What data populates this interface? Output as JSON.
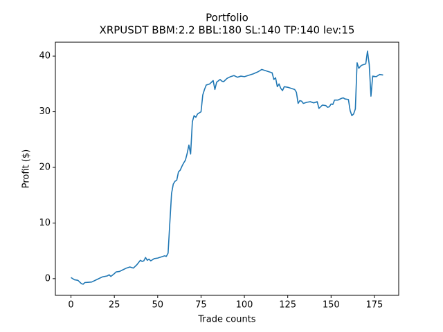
{
  "chart_data": {
    "type": "line",
    "title": "Portfolio",
    "subtitle": "XRPUSDT BBM:2.2 BBL:180 SL:140 TP:140 lev:15",
    "x_label": "Trade counts",
    "y_label": "Profit ($)",
    "x": [
      0,
      2,
      4,
      6,
      7,
      8,
      12,
      14,
      16,
      18,
      21,
      22,
      23,
      25,
      26,
      28,
      30,
      32,
      34,
      36,
      38,
      40,
      41,
      42,
      43,
      44,
      45,
      46,
      48,
      50,
      52,
      54,
      55,
      56,
      57,
      58,
      59,
      60,
      61,
      62,
      63,
      64,
      65,
      66,
      67,
      68,
      69,
      70,
      71,
      72,
      73,
      75,
      76,
      77,
      78,
      80,
      82,
      83,
      84,
      86,
      87,
      88,
      90,
      92,
      94,
      96,
      98,
      100,
      102,
      105,
      108,
      110,
      112,
      114,
      116,
      117,
      118,
      119,
      120,
      121,
      122,
      123,
      125,
      127,
      129,
      130,
      131,
      132,
      133,
      134,
      136,
      138,
      140,
      142,
      143,
      145,
      147,
      148,
      149,
      150,
      151,
      152,
      154,
      156,
      157,
      158,
      160,
      161,
      162,
      163,
      164,
      165,
      166,
      167,
      168,
      170,
      171,
      172,
      173,
      174,
      176,
      178,
      180
    ],
    "series": [
      {
        "name": "Profit",
        "color": "#1f77b4",
        "values": [
          0.2,
          -0.2,
          -0.3,
          -0.9,
          -1.0,
          -0.7,
          -0.6,
          -0.3,
          0.0,
          0.3,
          0.5,
          0.7,
          0.4,
          0.9,
          1.2,
          1.3,
          1.6,
          1.9,
          2.1,
          1.9,
          2.5,
          3.3,
          3.1,
          3.2,
          3.8,
          3.3,
          3.5,
          3.2,
          3.6,
          3.7,
          3.9,
          4.1,
          4.0,
          4.6,
          10.0,
          15.3,
          17.0,
          17.5,
          17.7,
          19.2,
          19.5,
          20.2,
          20.8,
          21.3,
          22.5,
          24.0,
          22.4,
          28.2,
          29.3,
          29.0,
          29.6,
          30.0,
          33.0,
          34.0,
          34.8,
          35.0,
          35.6,
          34.0,
          35.3,
          35.8,
          35.5,
          35.4,
          36.0,
          36.3,
          36.5,
          36.2,
          36.4,
          36.3,
          36.5,
          36.8,
          37.2,
          37.6,
          37.4,
          37.2,
          37.0,
          35.8,
          36.1,
          34.5,
          35.0,
          34.2,
          33.8,
          34.5,
          34.4,
          34.2,
          34.0,
          33.5,
          31.5,
          32.0,
          31.9,
          31.5,
          31.7,
          31.8,
          31.6,
          31.8,
          30.6,
          31.2,
          31.1,
          30.8,
          30.9,
          31.4,
          31.3,
          32.1,
          32.1,
          32.4,
          32.5,
          32.3,
          32.2,
          30.2,
          29.3,
          29.6,
          30.5,
          38.8,
          37.8,
          38.2,
          38.4,
          38.6,
          40.9,
          38.5,
          32.8,
          36.4,
          36.3,
          36.7,
          36.6
        ]
      }
    ],
    "xlim": [
      -9,
      189
    ],
    "ylim": [
      -3,
      42.5
    ],
    "xticks": [
      0,
      25,
      50,
      75,
      100,
      125,
      150,
      175
    ],
    "yticks": [
      0,
      10,
      20,
      30,
      40
    ]
  }
}
